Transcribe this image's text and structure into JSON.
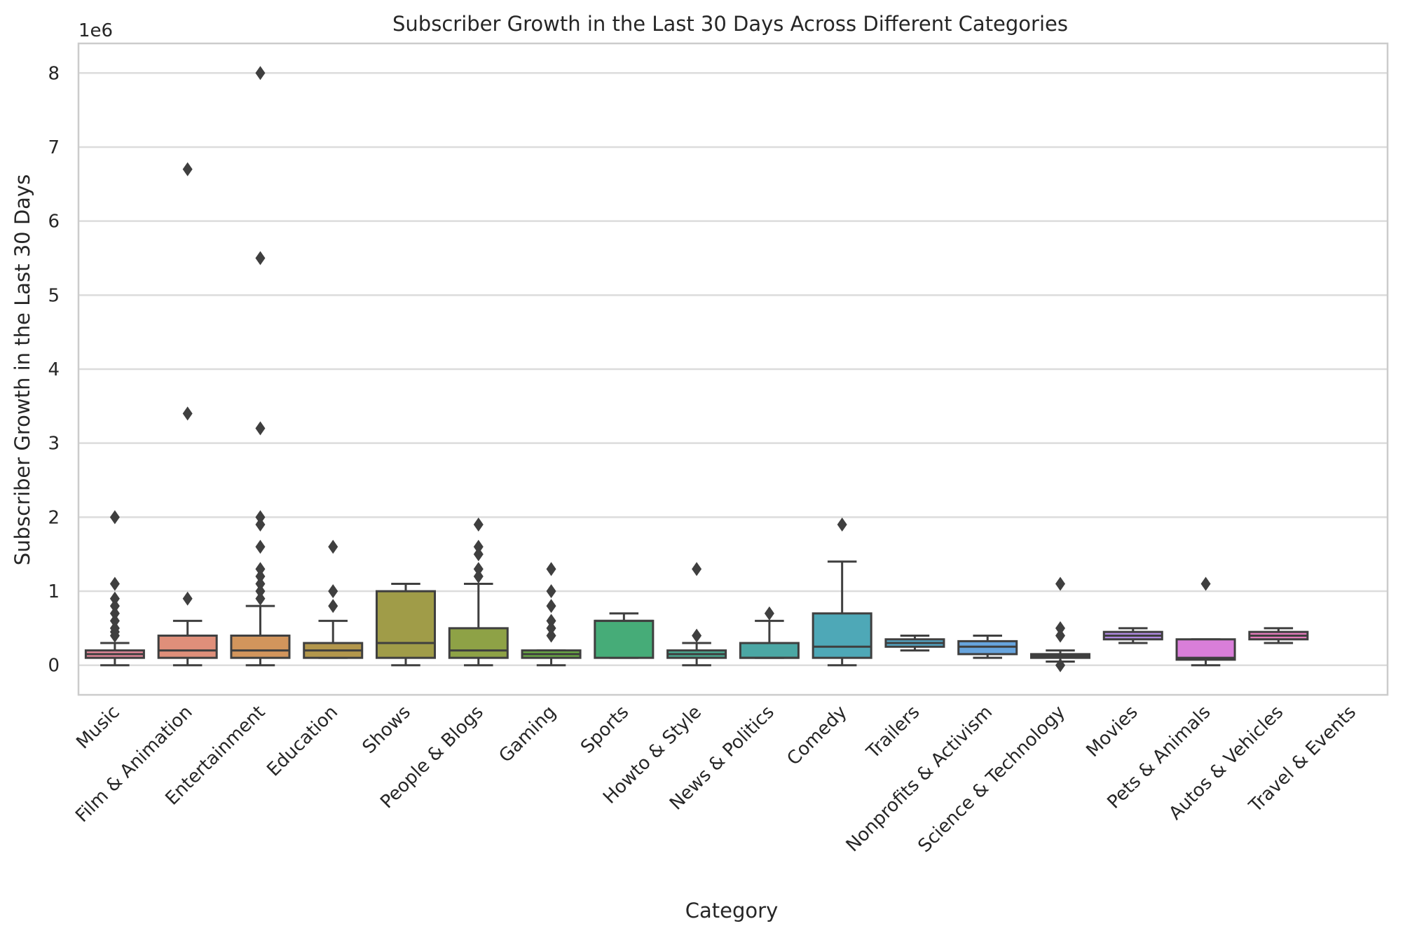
{
  "chart_data": {
    "type": "box",
    "title": "Subscriber Growth in the Last 30 Days Across Different Categories",
    "xlabel": "Category",
    "ylabel": "Subscriber Growth in the Last 30 Days",
    "y_offset_label": "1e6",
    "y_scale": 1000000,
    "ylim": [
      -400000,
      8400000
    ],
    "y_ticks": [
      0,
      1000000,
      2000000,
      3000000,
      4000000,
      5000000,
      6000000,
      7000000,
      8000000
    ],
    "y_tick_labels": [
      "0",
      "1",
      "2",
      "3",
      "4",
      "5",
      "6",
      "7",
      "8"
    ],
    "grid": "horizontal",
    "categories": [
      "Music",
      "Film & Animation",
      "Entertainment",
      "Education",
      "Shows",
      "People & Blogs",
      "Gaming",
      "Sports",
      "Howto & Style",
      "News & Politics",
      "Comedy",
      "Trailers",
      "Nonprofits & Activism",
      "Science & Technology",
      "Movies",
      "Pets & Animals",
      "Autos & Vehicles",
      "Travel & Events"
    ],
    "colors": [
      "#e5889a",
      "#df8f7a",
      "#d2955c",
      "#b3974c",
      "#a09c48",
      "#8ea246",
      "#6bab45",
      "#46ac78",
      "#4aab92",
      "#4ba7a4",
      "#4ea8b7",
      "#55a9c9",
      "#67a4dd",
      "#8d96e2",
      "#b08ae1",
      "#d97ed9",
      "#e27cbb",
      "#e483a9"
    ],
    "boxes": [
      {
        "category": "Music",
        "whisker_low": 0,
        "q1": 100000,
        "median": 150000,
        "q3": 200000,
        "whisker_high": 300000,
        "outliers": [
          400000,
          450000,
          500000,
          600000,
          700000,
          800000,
          900000,
          1100000,
          2000000
        ]
      },
      {
        "category": "Film & Animation",
        "whisker_low": 0,
        "q1": 100000,
        "median": 200000,
        "q3": 400000,
        "whisker_high": 600000,
        "outliers": [
          900000,
          3400000,
          6700000
        ]
      },
      {
        "category": "Entertainment",
        "whisker_low": 0,
        "q1": 100000,
        "median": 200000,
        "q3": 400000,
        "whisker_high": 800000,
        "outliers": [
          900000,
          1000000,
          1100000,
          1200000,
          1300000,
          1600000,
          1900000,
          2000000,
          3200000,
          5500000,
          8000000
        ]
      },
      {
        "category": "Education",
        "whisker_low": 100000,
        "q1": 100000,
        "median": 200000,
        "q3": 300000,
        "whisker_high": 600000,
        "outliers": [
          800000,
          1000000,
          1600000
        ]
      },
      {
        "category": "Shows",
        "whisker_low": 0,
        "q1": 100000,
        "median": 300000,
        "q3": 1000000,
        "whisker_high": 1100000,
        "outliers": []
      },
      {
        "category": "People & Blogs",
        "whisker_low": 0,
        "q1": 100000,
        "median": 200000,
        "q3": 500000,
        "whisker_high": 1100000,
        "outliers": [
          1200000,
          1300000,
          1500000,
          1600000,
          1900000
        ]
      },
      {
        "category": "Gaming",
        "whisker_low": 0,
        "q1": 100000,
        "median": 150000,
        "q3": 200000,
        "whisker_high": 200000,
        "outliers": [
          400000,
          500000,
          600000,
          800000,
          1000000,
          1300000
        ]
      },
      {
        "category": "Sports",
        "whisker_low": 100000,
        "q1": 100000,
        "median": 600000,
        "q3": 600000,
        "whisker_high": 700000,
        "outliers": []
      },
      {
        "category": "Howto & Style",
        "whisker_low": 0,
        "q1": 100000,
        "median": 150000,
        "q3": 200000,
        "whisker_high": 300000,
        "outliers": [
          400000,
          1300000
        ]
      },
      {
        "category": "News & Politics",
        "whisker_low": 100000,
        "q1": 100000,
        "median": 100000,
        "q3": 300000,
        "whisker_high": 600000,
        "outliers": [
          700000
        ]
      },
      {
        "category": "Comedy",
        "whisker_low": 0,
        "q1": 100000,
        "median": 250000,
        "q3": 700000,
        "whisker_high": 1400000,
        "outliers": [
          1900000
        ]
      },
      {
        "category": "Trailers",
        "whisker_low": 200000,
        "q1": 250000,
        "median": 300000,
        "q3": 350000,
        "whisker_high": 400000,
        "outliers": []
      },
      {
        "category": "Nonprofits & Activism",
        "whisker_low": 100000,
        "q1": 150000,
        "median": 250000,
        "q3": 325000,
        "whisker_high": 400000,
        "outliers": []
      },
      {
        "category": "Science & Technology",
        "whisker_low": 50000,
        "q1": 100000,
        "median": 125000,
        "q3": 150000,
        "whisker_high": 200000,
        "outliers": [
          0,
          400000,
          500000,
          1100000
        ]
      },
      {
        "category": "Movies",
        "whisker_low": 300000,
        "q1": 350000,
        "median": 400000,
        "q3": 450000,
        "whisker_high": 500000,
        "outliers": []
      },
      {
        "category": "Pets & Animals",
        "whisker_low": 0,
        "q1": 75000,
        "median": 100000,
        "q3": 350000,
        "whisker_high": 350000,
        "outliers": [
          1100000
        ]
      },
      {
        "category": "Autos & Vehicles",
        "whisker_low": 300000,
        "q1": 350000,
        "median": 400000,
        "q3": 450000,
        "whisker_high": 500000,
        "outliers": []
      },
      {
        "category": "Travel & Events",
        "whisker_low": null,
        "q1": null,
        "median": null,
        "q3": null,
        "whisker_high": null,
        "outliers": []
      }
    ]
  }
}
